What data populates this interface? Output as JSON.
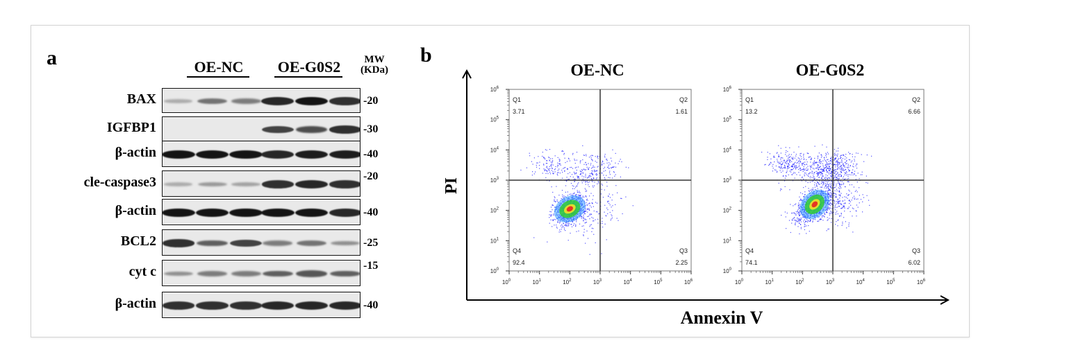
{
  "panel_a": {
    "label": "a",
    "groups": [
      "OE-NC",
      "OE-G0S2"
    ],
    "mw_header": [
      "MW",
      "(KDa)"
    ],
    "rows": [
      {
        "protein": "BAX",
        "mw": "-20",
        "intensity": [
          0.15,
          0.45,
          0.4,
          0.85,
          0.95,
          0.8
        ]
      },
      {
        "protein": "IGFBP1",
        "mw": "-30",
        "intensity": [
          0.0,
          0.0,
          0.0,
          0.7,
          0.65,
          0.8
        ]
      },
      {
        "protein": "β-actin",
        "mw": "-40",
        "intensity": [
          0.95,
          0.95,
          0.95,
          0.85,
          0.9,
          0.9
        ]
      },
      {
        "protein": "cle-caspase3",
        "mw": "-20",
        "intensity": [
          0.15,
          0.25,
          0.2,
          0.8,
          0.85,
          0.8
        ]
      },
      {
        "protein": "β-actin",
        "mw": "-40",
        "intensity": [
          0.95,
          0.95,
          0.95,
          0.95,
          0.95,
          0.85
        ]
      },
      {
        "protein": "BCL2",
        "mw": "-25",
        "intensity": [
          0.8,
          0.55,
          0.7,
          0.4,
          0.45,
          0.3
        ]
      },
      {
        "protein": "cyt c",
        "mw": "-15",
        "intensity": [
          0.3,
          0.4,
          0.4,
          0.55,
          0.6,
          0.55
        ]
      },
      {
        "protein": "β-actin",
        "mw": "-40",
        "intensity": [
          0.8,
          0.8,
          0.8,
          0.85,
          0.85,
          0.85
        ]
      }
    ]
  },
  "panel_b": {
    "label": "b",
    "y_axis_label": "PI",
    "x_axis_label": "Annexin V",
    "plots": [
      {
        "title": "OE-NC",
        "quadrants": {
          "Q1": "3.71",
          "Q2": "1.61",
          "Q3": "2.25",
          "Q4": "92.4"
        }
      },
      {
        "title": "OE-G0S2",
        "quadrants": {
          "Q1": "13.2",
          "Q2": "6.66",
          "Q3": "6.02",
          "Q4": "74.1"
        }
      }
    ],
    "quadrant_names": [
      "Q1",
      "Q2",
      "Q3",
      "Q4"
    ],
    "axis_range_log10": [
      0,
      6
    ],
    "gate_log10": {
      "x": 3,
      "y": 3
    },
    "tick_labels": [
      "10",
      "10",
      "10",
      "10",
      "10",
      "10",
      "10"
    ],
    "tick_exponents": [
      "0",
      "1",
      "2",
      "3",
      "4",
      "5",
      "6"
    ],
    "colors": {
      "dots": "#1a1aff",
      "core_green": "#33cc33",
      "core_red": "#e52222"
    }
  }
}
